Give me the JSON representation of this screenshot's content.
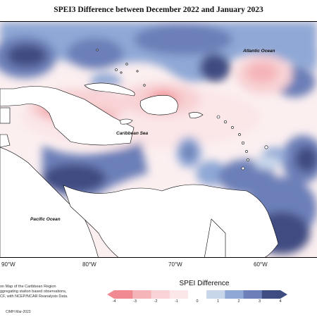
{
  "title": "SPEI3 Difference between December 2022 and January 2023",
  "labels": {
    "atlantic": "Atlantic Ocean",
    "caribbean": "Caribbean Sea",
    "pacific": "Pacific Ocean"
  },
  "longitude_labels": [
    "90°W",
    "80°W",
    "70°W",
    "60°W"
  ],
  "legend": {
    "title": "SPEI Difference",
    "ticks": [
      "-4",
      "-3",
      "-2",
      "-1",
      "0",
      "1",
      "2",
      "3",
      "4"
    ],
    "colors": [
      "#f08a90",
      "#f4b4b8",
      "#f8d2d4",
      "#fbe6e8",
      "#ffffff",
      "#c8d6ea",
      "#8fa8d6",
      "#6c7fb8",
      "#3f4c82"
    ]
  },
  "footnote": {
    "lines": [
      "on Map of the Caribbean Region",
      "ggregating station based observations,",
      "CF, with NCEP/NCAR Reanalysis Data."
    ],
    "credit": "CIMH Mar-2023"
  }
}
